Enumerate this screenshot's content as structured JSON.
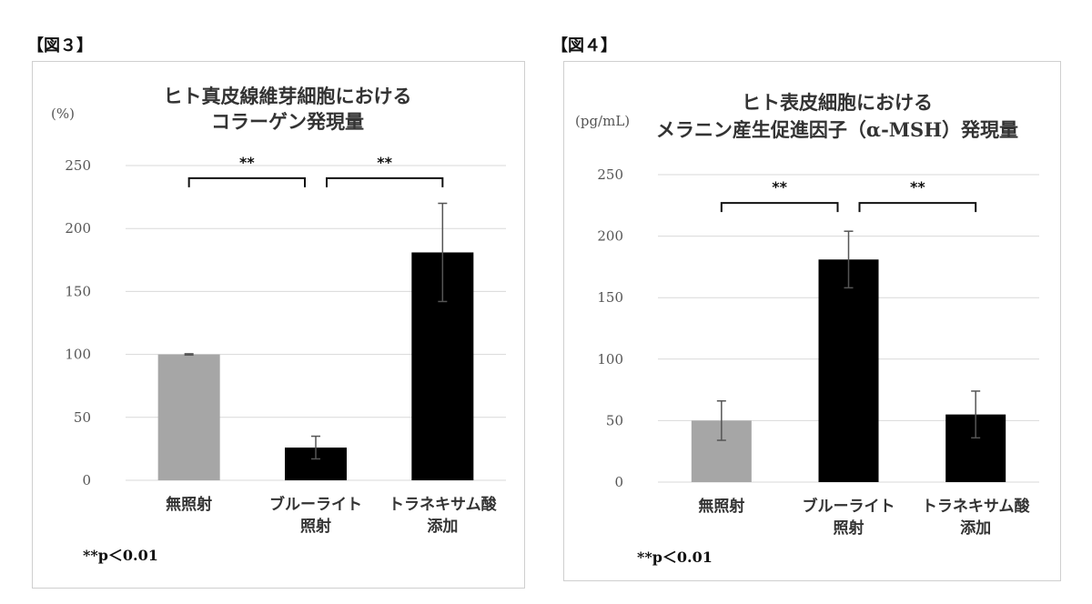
{
  "chart_data": [
    {
      "type": "bar",
      "figure_label": "【図３】",
      "title": [
        "ヒト真皮線維芽細胞における",
        "コラーゲン発現量"
      ],
      "ylabel": "(%)",
      "ylim": [
        0,
        250
      ],
      "yticks": [
        "0",
        "50",
        "100",
        "150",
        "200",
        "250"
      ],
      "categories": [
        [
          "無照射"
        ],
        [
          "ブルーライト",
          "照射"
        ],
        [
          "トラネキサム酸",
          "添加"
        ]
      ],
      "values": [
        100,
        26,
        181
      ],
      "errors": [
        0.5,
        9,
        39
      ],
      "colors": [
        "#a6a6a6",
        "#000000",
        "#000000"
      ],
      "significance": [
        {
          "from": 0,
          "to": 1,
          "label": "**",
          "y": 240
        },
        {
          "from": 1,
          "to": 2,
          "label": "**",
          "y": 240
        }
      ],
      "note": "**p＜0.01",
      "grid": true
    },
    {
      "type": "bar",
      "figure_label": "【図４】",
      "title": [
        "ヒト表皮細胞における",
        "メラニン産生促進因子（α-MSH）発現量"
      ],
      "ylabel": "(pg/mL)",
      "ylim": [
        0,
        250
      ],
      "yticks": [
        "0",
        "50",
        "100",
        "150",
        "200",
        "250"
      ],
      "categories": [
        [
          "無照射"
        ],
        [
          "ブルーライト",
          "照射"
        ],
        [
          "トラネキサム酸",
          "添加"
        ]
      ],
      "values": [
        50,
        181,
        55
      ],
      "errors": [
        16,
        23,
        19
      ],
      "colors": [
        "#a6a6a6",
        "#000000",
        "#000000"
      ],
      "significance": [
        {
          "from": 0,
          "to": 1,
          "label": "**",
          "y": 227
        },
        {
          "from": 1,
          "to": 2,
          "label": "**",
          "y": 227
        }
      ],
      "note": "**p＜0.01",
      "grid": true
    }
  ]
}
